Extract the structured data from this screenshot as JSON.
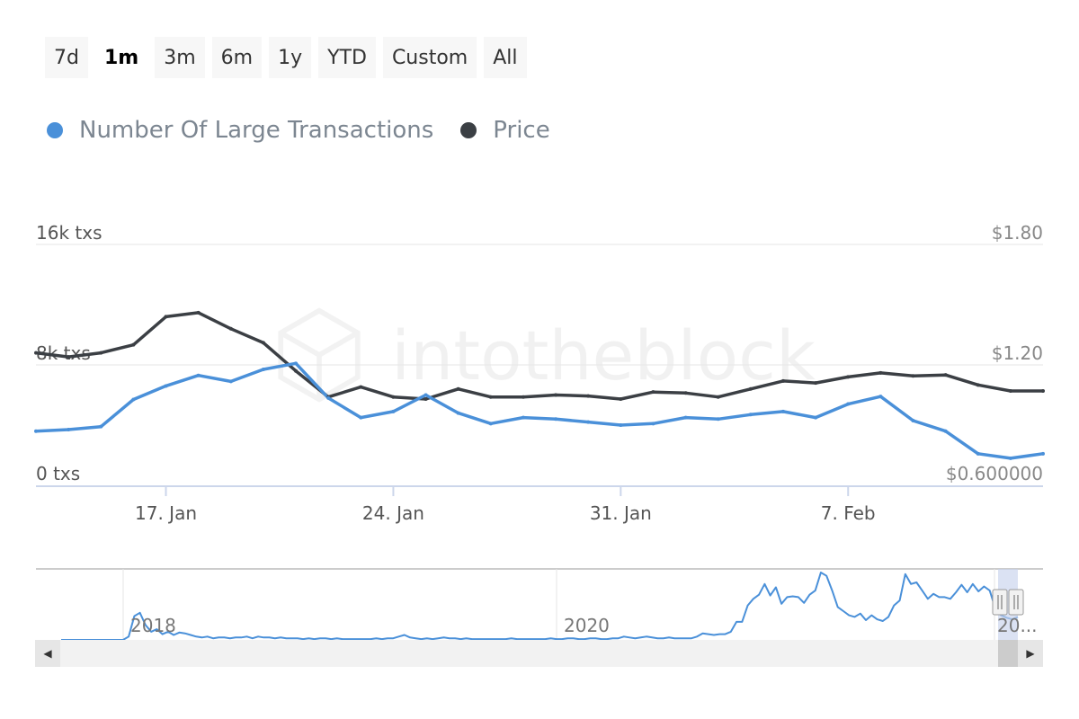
{
  "range_buttons": [
    "7d",
    "1m",
    "3m",
    "6m",
    "1y",
    "YTD",
    "Custom",
    "All"
  ],
  "active_range": "1m",
  "watermark": "intotheblock",
  "colors": {
    "transactions": "#4a90d9",
    "price": "#3b3f44"
  },
  "chart_data": {
    "type": "line",
    "x": [
      "13 Jan",
      "14 Jan",
      "15 Jan",
      "16 Jan",
      "17 Jan",
      "18 Jan",
      "19 Jan",
      "20 Jan",
      "21 Jan",
      "22 Jan",
      "23 Jan",
      "24 Jan",
      "25 Jan",
      "26 Jan",
      "27 Jan",
      "28 Jan",
      "29 Jan",
      "30 Jan",
      "31 Jan",
      "1 Feb",
      "2 Feb",
      "3 Feb",
      "4 Feb",
      "5 Feb",
      "6 Feb",
      "7 Feb",
      "8 Feb",
      "9 Feb",
      "10 Feb",
      "11 Feb",
      "12 Feb",
      "13 Feb"
    ],
    "series": [
      {
        "name": "Number Of Large Transactions",
        "axis": "left",
        "values": [
          3600,
          3700,
          3900,
          5700,
          6600,
          7300,
          6900,
          7700,
          8100,
          5800,
          4500,
          4900,
          6000,
          4800,
          4100,
          4500,
          4400,
          4200,
          4000,
          4100,
          4500,
          4400,
          4700,
          4900,
          4500,
          5400,
          5900,
          4300,
          3600,
          2100,
          1800,
          2100
        ]
      },
      {
        "name": "Price",
        "axis": "right",
        "values": [
          1.26,
          1.24,
          1.26,
          1.3,
          1.44,
          1.46,
          1.38,
          1.31,
          1.17,
          1.04,
          1.09,
          1.04,
          1.03,
          1.08,
          1.04,
          1.04,
          1.05,
          1.045,
          1.03,
          1.065,
          1.06,
          1.04,
          1.08,
          1.12,
          1.11,
          1.14,
          1.16,
          1.145,
          1.15,
          1.1,
          1.07,
          1.07
        ]
      }
    ],
    "x_ticks": [
      "17. Jan",
      "24. Jan",
      "31. Jan",
      "7. Feb"
    ],
    "y_left": {
      "ticks": [
        "0 txs",
        "8k txs",
        "16k txs"
      ],
      "range": [
        0,
        16000
      ]
    },
    "y_right": {
      "ticks": [
        "$0.600000",
        "$1.20",
        "$1.80"
      ],
      "range": [
        0.6,
        1.8
      ]
    },
    "navigator": {
      "labels": [
        "2018",
        "2020",
        "20..."
      ],
      "values": [
        0,
        0,
        0,
        0,
        0,
        0,
        0,
        0,
        0,
        0,
        0,
        0,
        4,
        29,
        33,
        18,
        10,
        13,
        7,
        10,
        6,
        9,
        8,
        6,
        4,
        3,
        4,
        2,
        3,
        3,
        2,
        3,
        3,
        4,
        2,
        4,
        3,
        3,
        2,
        3,
        2,
        2,
        2,
        1,
        2,
        1,
        2,
        2,
        1,
        2,
        1,
        1,
        1,
        1,
        1,
        1,
        2,
        1,
        2,
        2,
        4,
        6,
        3,
        2,
        1,
        2,
        1,
        2,
        3,
        2,
        2,
        1,
        2,
        1,
        1,
        1,
        1,
        1,
        1,
        1,
        2,
        1,
        1,
        1,
        1,
        1,
        1,
        2,
        1,
        1,
        2,
        2,
        1,
        1,
        2,
        2,
        1,
        1,
        2,
        2,
        4,
        3,
        2,
        3,
        4,
        3,
        2,
        2,
        3,
        2,
        2,
        2,
        2,
        4,
        8,
        7,
        6,
        7,
        7,
        10,
        22,
        22,
        42,
        50,
        55,
        68,
        54,
        64,
        44,
        52,
        53,
        52,
        45,
        55,
        60,
        82,
        78,
        60,
        40,
        35,
        30,
        28,
        32,
        24,
        30,
        25,
        23,
        28,
        42,
        48,
        80,
        68,
        70,
        60,
        50,
        56,
        52,
        52,
        50,
        58,
        67,
        58,
        68,
        59,
        65,
        60,
        38,
        30,
        27,
        25,
        28
      ],
      "window": "last 1m"
    }
  }
}
